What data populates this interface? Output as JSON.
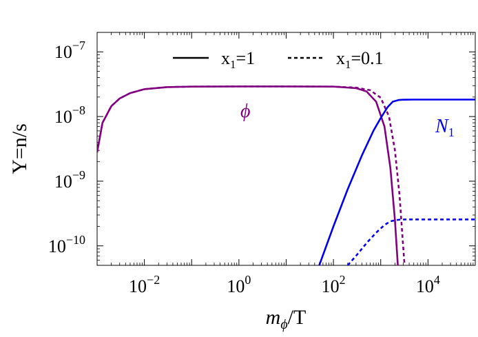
{
  "chart_data": {
    "type": "line",
    "xlabel": {
      "main": "m",
      "sub": "ϕ",
      "tail": "/T"
    },
    "ylabel": "Y=n/s",
    "x_scale": "log",
    "y_scale": "log",
    "xlim": [
      0.001,
      100000
    ],
    "ylim": [
      5e-11,
      2e-07
    ],
    "x_ticks": [
      {
        "value": 0.01,
        "base": "10",
        "exp": "−2"
      },
      {
        "value": 1,
        "base": "10",
        "exp": "0"
      },
      {
        "value": 100,
        "base": "10",
        "exp": "2"
      },
      {
        "value": 10000,
        "base": "10",
        "exp": "4"
      }
    ],
    "y_ticks": [
      {
        "value": 1e-10,
        "base": "10",
        "exp": "−10"
      },
      {
        "value": 1e-09,
        "base": "10",
        "exp": "−9"
      },
      {
        "value": 1e-08,
        "base": "10",
        "exp": "−8"
      },
      {
        "value": 1e-07,
        "base": "10",
        "exp": "−7"
      }
    ],
    "legend": {
      "placement": "top-center",
      "entries": [
        {
          "style": "solid",
          "base": "x",
          "sub": "1",
          "tail": "=1"
        },
        {
          "style": "dashed",
          "base": "x",
          "sub": "1",
          "tail": "=0.1"
        }
      ]
    },
    "annotations": [
      {
        "text": "ϕ",
        "color": "#800080",
        "near_x": 1,
        "near_y": 1.1e-08
      },
      {
        "main": "N",
        "sub": "1",
        "color": "#0000ee",
        "near_x": 30000,
        "near_y": 7.5e-09
      }
    ],
    "series": [
      {
        "species": "phi",
        "x1": "1",
        "style": "solid",
        "color": "#800080",
        "x": [
          0.001,
          0.0013,
          0.002,
          0.003,
          0.005,
          0.01,
          0.03,
          0.1,
          1,
          10,
          100,
          300,
          500,
          800,
          1200,
          1600,
          2000,
          2300
        ],
        "y": [
          2.8e-09,
          8e-09,
          1.45e-08,
          1.9e-08,
          2.3e-08,
          2.65e-08,
          2.85e-08,
          2.9e-08,
          2.92e-08,
          2.92e-08,
          2.9e-08,
          2.75e-08,
          2.45e-08,
          1.7e-08,
          7e-09,
          1.6e-09,
          2.5e-10,
          5e-11
        ]
      },
      {
        "species": "phi",
        "x1": "0.1",
        "style": "dashed",
        "color": "#800080",
        "x": [
          0.001,
          0.0013,
          0.002,
          0.003,
          0.005,
          0.01,
          0.03,
          0.1,
          1,
          10,
          100,
          300,
          600,
          1000,
          1500,
          2000,
          2500,
          2900,
          3200
        ],
        "y": [
          2.8e-09,
          8e-09,
          1.45e-08,
          1.9e-08,
          2.3e-08,
          2.65e-08,
          2.85e-08,
          2.9e-08,
          2.92e-08,
          2.92e-08,
          2.9e-08,
          2.8e-08,
          2.55e-08,
          1.95e-08,
          1e-08,
          3e-09,
          6e-10,
          1.3e-10,
          5e-11
        ]
      },
      {
        "species": "N1",
        "x1": "1",
        "style": "solid",
        "color": "#0000ee",
        "x": [
          50,
          100,
          200,
          400,
          700,
          1000,
          1400,
          1800,
          2400,
          3000,
          5000,
          10000,
          100000
        ],
        "y": [
          5e-11,
          2e-10,
          7.5e-10,
          2.5e-09,
          6e-09,
          9.5e-09,
          1.4e-08,
          1.7e-08,
          1.8e-08,
          1.82e-08,
          1.83e-08,
          1.83e-08,
          1.83e-08
        ]
      },
      {
        "species": "N1",
        "x1": "0.1",
        "style": "dashed",
        "color": "#0000ee",
        "x": [
          200,
          300,
          500,
          800,
          1200,
          1600,
          2100,
          2600,
          3500,
          5000,
          10000,
          100000
        ],
        "y": [
          5e-11,
          7e-11,
          1.1e-10,
          1.6e-10,
          2.1e-10,
          2.4e-10,
          2.5e-10,
          2.55e-10,
          2.56e-10,
          2.56e-10,
          2.56e-10,
          2.56e-10
        ]
      }
    ]
  }
}
